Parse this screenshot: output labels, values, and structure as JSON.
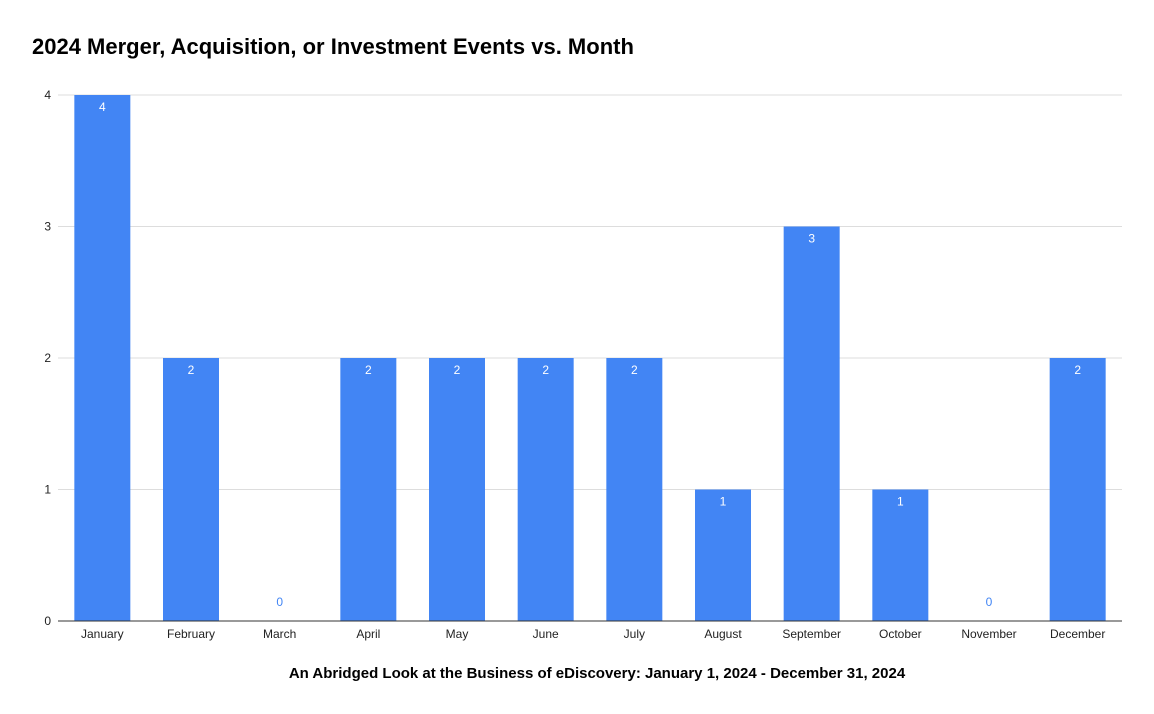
{
  "chart_data": {
    "type": "bar",
    "title": "2024 Merger, Acquisition, or Investment Events vs. Month",
    "xlabel": "An Abridged Look at the Business of eDiscovery: January 1, 2024 - December 31, 2024",
    "ylabel": "",
    "categories": [
      "January",
      "February",
      "March",
      "April",
      "May",
      "June",
      "July",
      "August",
      "September",
      "October",
      "November",
      "December"
    ],
    "values": [
      4,
      2,
      0,
      2,
      2,
      2,
      2,
      1,
      3,
      1,
      0,
      2
    ],
    "ylim": [
      0,
      4
    ],
    "yticks": [
      "0",
      "1",
      "2",
      "3",
      "4"
    ],
    "data_labels": [
      "4",
      "2",
      "0",
      "2",
      "2",
      "2",
      "2",
      "1",
      "3",
      "1",
      "0",
      "2"
    ],
    "bar_color": "#4285F4",
    "inside_label_color": "#ffffff",
    "zero_label_color": "#4285F4",
    "grid": true,
    "legend": "none"
  }
}
